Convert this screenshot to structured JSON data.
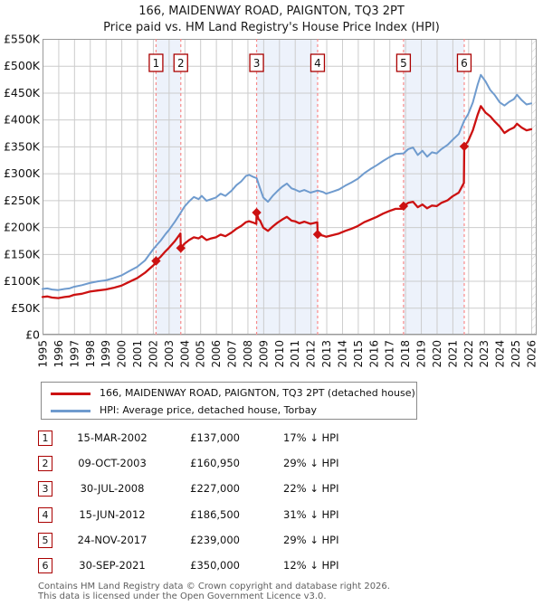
{
  "title": {
    "line1": "166, MAIDENWAY ROAD, PAIGNTON, TQ3 2PT",
    "line2": "Price paid vs. HM Land Registry's House Price Index (HPI)"
  },
  "colors": {
    "property_line": "#cc1111",
    "hpi_line": "#6f9bce",
    "sale_dash": "#f98a8a",
    "marker_box_border": "#aa0000",
    "ownership_band": "#edf2fb",
    "gridline": "#cccccc",
    "plot_border": "#9a9a9a",
    "hatch": "#c9c9c9",
    "footer_text": "#5f5f5f"
  },
  "chart_data": {
    "type": "line",
    "title": "Price paid vs. HM Land Registry's House Price Index (HPI)",
    "units": "GBP thousands",
    "x_axis": {
      "tick_years": [
        1995,
        1996,
        1997,
        1998,
        1999,
        2000,
        2001,
        2002,
        2003,
        2004,
        2005,
        2006,
        2007,
        2008,
        2009,
        2010,
        2011,
        2012,
        2013,
        2014,
        2015,
        2016,
        2017,
        2018,
        2019,
        2020,
        2021,
        2022,
        2023,
        2024,
        2025,
        2026
      ],
      "range": [
        1995,
        2026.35
      ]
    },
    "y_axis": {
      "tick_labels": [
        "£0",
        "£50K",
        "£100K",
        "£150K",
        "£200K",
        "£250K",
        "£300K",
        "£350K",
        "£400K",
        "£450K",
        "£500K",
        "£550K"
      ],
      "tick_values": [
        0,
        50,
        100,
        150,
        200,
        250,
        300,
        350,
        400,
        450,
        500,
        550
      ],
      "range": [
        0,
        550
      ],
      "grid": true
    },
    "legend_position": "below",
    "ownership_bands": [
      [
        2002.2,
        2003.77
      ],
      [
        2008.58,
        2012.45
      ],
      [
        2017.9,
        2021.75
      ]
    ],
    "series": [
      {
        "name": "166, MAIDENWAY ROAD, PAIGNTON, TQ3 2PT (detached house)",
        "color": "#cc1111",
        "points": [
          [
            1995,
            70
          ],
          [
            1995.3,
            71
          ],
          [
            1995.6,
            69
          ],
          [
            1996,
            68
          ],
          [
            1996.4,
            70
          ],
          [
            1996.7,
            71
          ],
          [
            1997,
            74
          ],
          [
            1997.5,
            76
          ],
          [
            1998,
            80
          ],
          [
            1998.5,
            82
          ],
          [
            1999,
            84
          ],
          [
            1999.5,
            87
          ],
          [
            2000,
            91
          ],
          [
            2000.5,
            98
          ],
          [
            2001,
            105
          ],
          [
            2001.5,
            115
          ],
          [
            2002,
            128
          ],
          [
            2002.17,
            133
          ],
          [
            2002.2,
            137
          ],
          [
            2002.5,
            145
          ],
          [
            2002.8,
            155
          ],
          [
            2003,
            161
          ],
          [
            2003.4,
            174
          ],
          [
            2003.75,
            188
          ],
          [
            2003.77,
            161
          ],
          [
            2004,
            169
          ],
          [
            2004.3,
            176
          ],
          [
            2004.6,
            181
          ],
          [
            2004.9,
            179
          ],
          [
            2005.1,
            183
          ],
          [
            2005.4,
            176
          ],
          [
            2005.7,
            179
          ],
          [
            2006,
            181
          ],
          [
            2006.3,
            186
          ],
          [
            2006.6,
            183
          ],
          [
            2007,
            190
          ],
          [
            2007.3,
            197
          ],
          [
            2007.6,
            202
          ],
          [
            2007.9,
            209
          ],
          [
            2008.1,
            211
          ],
          [
            2008.4,
            208
          ],
          [
            2008.56,
            206
          ],
          [
            2008.58,
            227
          ],
          [
            2008.7,
            215
          ],
          [
            2008.8,
            212
          ],
          [
            2009,
            199
          ],
          [
            2009.3,
            193
          ],
          [
            2009.6,
            201
          ],
          [
            2009.9,
            208
          ],
          [
            2010.2,
            214
          ],
          [
            2010.5,
            219
          ],
          [
            2010.8,
            212
          ],
          [
            2011,
            211
          ],
          [
            2011.3,
            207
          ],
          [
            2011.6,
            210
          ],
          [
            2012,
            206
          ],
          [
            2012.43,
            209
          ],
          [
            2012.45,
            186.5
          ],
          [
            2012.8,
            184
          ],
          [
            2013,
            182
          ],
          [
            2013.4,
            185
          ],
          [
            2013.8,
            188
          ],
          [
            2014.2,
            193
          ],
          [
            2014.6,
            197
          ],
          [
            2015,
            202
          ],
          [
            2015.4,
            209
          ],
          [
            2015.8,
            214
          ],
          [
            2016.2,
            219
          ],
          [
            2016.6,
            225
          ],
          [
            2017,
            230
          ],
          [
            2017.4,
            234
          ],
          [
            2017.88,
            234
          ],
          [
            2017.9,
            239
          ],
          [
            2018.2,
            245
          ],
          [
            2018.5,
            247
          ],
          [
            2018.8,
            237
          ],
          [
            2019.1,
            242
          ],
          [
            2019.4,
            235
          ],
          [
            2019.7,
            240
          ],
          [
            2020,
            239
          ],
          [
            2020.3,
            245
          ],
          [
            2020.7,
            250
          ],
          [
            2021,
            257
          ],
          [
            2021.4,
            264
          ],
          [
            2021.73,
            282
          ],
          [
            2021.75,
            350
          ],
          [
            2022,
            360
          ],
          [
            2022.3,
            380
          ],
          [
            2022.6,
            409
          ],
          [
            2022.8,
            425
          ],
          [
            2023.1,
            413
          ],
          [
            2023.4,
            406
          ],
          [
            2023.7,
            396
          ],
          [
            2024,
            387
          ],
          [
            2024.3,
            375
          ],
          [
            2024.6,
            381
          ],
          [
            2024.9,
            385
          ],
          [
            2025.1,
            392
          ],
          [
            2025.4,
            385
          ],
          [
            2025.7,
            380
          ],
          [
            2026,
            382
          ]
        ]
      },
      {
        "name": "HPI: Average price, detached house, Torbay",
        "color": "#6f9bce",
        "points": [
          [
            1995,
            85
          ],
          [
            1995.3,
            86
          ],
          [
            1995.6,
            84
          ],
          [
            1996,
            83
          ],
          [
            1996.4,
            85
          ],
          [
            1996.7,
            86
          ],
          [
            1997,
            89
          ],
          [
            1997.5,
            92
          ],
          [
            1998,
            96
          ],
          [
            1998.5,
            99
          ],
          [
            1999,
            101
          ],
          [
            1999.5,
            105
          ],
          [
            2000,
            110
          ],
          [
            2000.5,
            118
          ],
          [
            2001,
            126
          ],
          [
            2001.5,
            138
          ],
          [
            2002,
            158
          ],
          [
            2002.2,
            165
          ],
          [
            2002.5,
            175
          ],
          [
            2002.8,
            187
          ],
          [
            2003,
            194
          ],
          [
            2003.4,
            210
          ],
          [
            2003.77,
            227
          ],
          [
            2004,
            238
          ],
          [
            2004.3,
            248
          ],
          [
            2004.6,
            256
          ],
          [
            2004.9,
            252
          ],
          [
            2005.1,
            258
          ],
          [
            2005.4,
            249
          ],
          [
            2005.7,
            252
          ],
          [
            2006,
            255
          ],
          [
            2006.3,
            262
          ],
          [
            2006.6,
            258
          ],
          [
            2007,
            268
          ],
          [
            2007.3,
            278
          ],
          [
            2007.6,
            285
          ],
          [
            2007.9,
            295
          ],
          [
            2008.1,
            297
          ],
          [
            2008.4,
            293
          ],
          [
            2008.58,
            291
          ],
          [
            2008.8,
            272
          ],
          [
            2009,
            255
          ],
          [
            2009.3,
            247
          ],
          [
            2009.6,
            258
          ],
          [
            2009.9,
            267
          ],
          [
            2010.2,
            275
          ],
          [
            2010.5,
            281
          ],
          [
            2010.8,
            272
          ],
          [
            2011,
            270
          ],
          [
            2011.3,
            266
          ],
          [
            2011.6,
            269
          ],
          [
            2012,
            264
          ],
          [
            2012.45,
            268
          ],
          [
            2012.8,
            265
          ],
          [
            2013,
            262
          ],
          [
            2013.4,
            266
          ],
          [
            2013.8,
            270
          ],
          [
            2014.2,
            277
          ],
          [
            2014.6,
            283
          ],
          [
            2015,
            290
          ],
          [
            2015.4,
            300
          ],
          [
            2015.8,
            308
          ],
          [
            2016.2,
            315
          ],
          [
            2016.6,
            323
          ],
          [
            2017,
            330
          ],
          [
            2017.4,
            336
          ],
          [
            2017.9,
            337
          ],
          [
            2018.2,
            345
          ],
          [
            2018.5,
            348
          ],
          [
            2018.8,
            334
          ],
          [
            2019.1,
            342
          ],
          [
            2019.4,
            331
          ],
          [
            2019.7,
            339
          ],
          [
            2020,
            337
          ],
          [
            2020.3,
            345
          ],
          [
            2020.7,
            353
          ],
          [
            2021,
            362
          ],
          [
            2021.4,
            373
          ],
          [
            2021.75,
            398
          ],
          [
            2022,
            410
          ],
          [
            2022.3,
            432
          ],
          [
            2022.6,
            465
          ],
          [
            2022.8,
            483
          ],
          [
            2023.1,
            471
          ],
          [
            2023.4,
            455
          ],
          [
            2023.7,
            445
          ],
          [
            2024,
            432
          ],
          [
            2024.3,
            426
          ],
          [
            2024.6,
            433
          ],
          [
            2024.9,
            438
          ],
          [
            2025.1,
            446
          ],
          [
            2025.4,
            436
          ],
          [
            2025.7,
            428
          ],
          [
            2026,
            430
          ]
        ]
      }
    ],
    "sales": [
      {
        "num": "1",
        "year": 2002.2,
        "value": 137,
        "date": "15-MAR-2002",
        "price": "£137,000",
        "delta": "17% ↓ HPI"
      },
      {
        "num": "2",
        "year": 2003.77,
        "value": 160.95,
        "date": "09-OCT-2003",
        "price": "£160,950",
        "delta": "29% ↓ HPI"
      },
      {
        "num": "3",
        "year": 2008.58,
        "value": 227,
        "date": "30-JUL-2008",
        "price": "£227,000",
        "delta": "22% ↓ HPI"
      },
      {
        "num": "4",
        "year": 2012.45,
        "value": 186.5,
        "date": "15-JUN-2012",
        "price": "£186,500",
        "delta": "31% ↓ HPI"
      },
      {
        "num": "5",
        "year": 2017.9,
        "value": 239,
        "date": "24-NOV-2017",
        "price": "£239,000",
        "delta": "29% ↓ HPI"
      },
      {
        "num": "6",
        "year": 2021.75,
        "value": 350,
        "date": "30-SEP-2021",
        "price": "£350,000",
        "delta": "12% ↓ HPI"
      }
    ]
  },
  "legend": {
    "items": [
      {
        "label": "166, MAIDENWAY ROAD, PAIGNTON, TQ3 2PT (detached house)",
        "color": "#cc1111"
      },
      {
        "label": "HPI: Average price, detached house, Torbay",
        "color": "#6f9bce"
      }
    ]
  },
  "footer": {
    "line1": "Contains HM Land Registry data © Crown copyright and database right 2026.",
    "line2": "This data is licensed under the Open Government Licence v3.0."
  }
}
